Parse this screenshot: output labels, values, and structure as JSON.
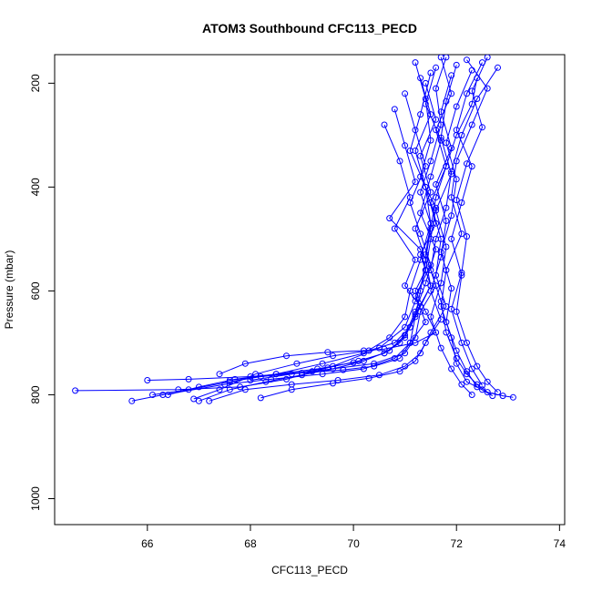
{
  "chart_data": {
    "type": "scatter",
    "title": "ATOM3 Southbound CFC113_PECD",
    "xlabel": "CFC113_PECD",
    "ylabel": "Pressure (mbar)",
    "xlim": [
      64.2,
      74.1
    ],
    "ylim": [
      1050,
      145
    ],
    "y_reversed": true,
    "x_ticks": [
      66,
      68,
      70,
      72,
      74
    ],
    "y_ticks": [
      200,
      400,
      600,
      800,
      1000
    ],
    "grid": false,
    "legend": "none",
    "marker": "open-circle",
    "connect_points": true,
    "series_color": "#0000ff",
    "series": [
      {
        "x": [
          72.4,
          72.3,
          72.0,
          71.8,
          71.6,
          71.5,
          71.4,
          71.3,
          71.2,
          71.1,
          70.8,
          70.2,
          69.4,
          68.4,
          67.5,
          66.3,
          65.7
        ],
        "y": [
          190,
          240,
          300,
          360,
          420,
          480,
          540,
          600,
          650,
          700,
          730,
          750,
          760,
          770,
          780,
          800,
          812
        ]
      },
      {
        "x": [
          71.2,
          71.4,
          71.5,
          71.3,
          71.6,
          71.5,
          71.4,
          71.2,
          71.0,
          70.5,
          69.6,
          68.7,
          67.8,
          66.6,
          64.6
        ],
        "y": [
          160,
          230,
          310,
          380,
          440,
          500,
          560,
          620,
          670,
          710,
          745,
          770,
          785,
          790,
          792
        ]
      },
      {
        "x": [
          71.8,
          71.6,
          71.7,
          71.5,
          71.3,
          71.5,
          71.4,
          71.6,
          71.3,
          71.2,
          71.0,
          70.4,
          69.2,
          68.0,
          66.8,
          66.0
        ],
        "y": [
          150,
          210,
          280,
          350,
          410,
          470,
          530,
          590,
          640,
          690,
          720,
          740,
          755,
          765,
          770,
          772
        ]
      },
      {
        "x": [
          72.8,
          72.4,
          72.1,
          71.9,
          71.8,
          71.6,
          71.5,
          71.7,
          71.8,
          72.0,
          72.2,
          72.4,
          72.6,
          72.9,
          73.1
        ],
        "y": [
          170,
          230,
          300,
          370,
          440,
          500,
          560,
          620,
          680,
          730,
          760,
          780,
          795,
          802,
          805
        ]
      },
      {
        "x": [
          70.8,
          71.0,
          71.2,
          70.7,
          71.3,
          71.4,
          71.2,
          71.4,
          71.6,
          71.2,
          70.6,
          70.2,
          69.5,
          68.7,
          67.9,
          67.4
        ],
        "y": [
          250,
          320,
          390,
          460,
          520,
          560,
          600,
          640,
          680,
          700,
          712,
          715,
          718,
          725,
          740,
          760
        ]
      },
      {
        "x": [
          72.2,
          72.6,
          72.3,
          72.0,
          71.9,
          72.1,
          71.8,
          71.7,
          71.9,
          72.0,
          72.2,
          72.5
        ],
        "y": [
          155,
          210,
          280,
          350,
          420,
          490,
          560,
          630,
          690,
          740,
          775,
          790
        ]
      },
      {
        "x": [
          71.5,
          71.3,
          71.1,
          71.4,
          71.5,
          71.3,
          71.1,
          71.0,
          70.7,
          70.2,
          69.4,
          68.5,
          67.6,
          66.8,
          66.1
        ],
        "y": [
          180,
          260,
          330,
          400,
          470,
          540,
          600,
          650,
          690,
          720,
          740,
          760,
          775,
          790,
          800
        ]
      },
      {
        "x": [
          72.0,
          71.8,
          71.7,
          71.9,
          71.6,
          71.8,
          71.7,
          71.5,
          71.7,
          71.9,
          72.1,
          72.3
        ],
        "y": [
          165,
          235,
          305,
          375,
          445,
          515,
          585,
          650,
          710,
          750,
          780,
          800
        ]
      },
      {
        "x": [
          71.4,
          71.6,
          71.3,
          71.5,
          71.2,
          71.4,
          71.5,
          71.3,
          71.1,
          70.8,
          70.3,
          69.6,
          68.9,
          68.1,
          67.4,
          66.9
        ],
        "y": [
          200,
          270,
          340,
          410,
          480,
          540,
          590,
          630,
          670,
          700,
          715,
          725,
          740,
          760,
          790,
          808
        ]
      },
      {
        "x": [
          72.3,
          72.0,
          71.8,
          72.0,
          71.9,
          71.7,
          71.9,
          71.8,
          72.0,
          72.2,
          72.4,
          72.7
        ],
        "y": [
          175,
          245,
          315,
          385,
          455,
          525,
          595,
          660,
          715,
          755,
          785,
          802
        ]
      },
      {
        "x": [
          71.0,
          71.2,
          71.4,
          71.1,
          71.3,
          71.5,
          71.2,
          71.4,
          71.1,
          70.9,
          70.4,
          69.8,
          69.0,
          68.2,
          67.6
        ],
        "y": [
          220,
          290,
          360,
          430,
          490,
          550,
          610,
          660,
          700,
          730,
          745,
          752,
          758,
          765,
          772
        ]
      },
      {
        "x": [
          71.7,
          71.9,
          71.6,
          71.8,
          71.5,
          71.7,
          71.6,
          71.8,
          71.5,
          71.3,
          71.0,
          70.5,
          69.7,
          68.8,
          67.9,
          67.2
        ],
        "y": [
          150,
          220,
          290,
          360,
          430,
          500,
          570,
          630,
          680,
          720,
          745,
          762,
          772,
          780,
          790,
          812
        ]
      },
      {
        "x": [
          72.5,
          72.2,
          72.0,
          72.3,
          72.1,
          71.9,
          72.1,
          72.0,
          72.2,
          72.4,
          72.6,
          72.8
        ],
        "y": [
          160,
          220,
          290,
          360,
          430,
          500,
          570,
          640,
          700,
          745,
          775,
          795
        ]
      },
      {
        "x": [
          71.3,
          71.5,
          71.2,
          71.4,
          71.6,
          71.3,
          71.5,
          71.2,
          71.0,
          70.6,
          70.0,
          69.3,
          68.5,
          67.7,
          67.0,
          66.4
        ],
        "y": [
          190,
          260,
          330,
          400,
          470,
          530,
          590,
          645,
          690,
          720,
          738,
          750,
          760,
          770,
          785,
          800
        ]
      },
      {
        "x": [
          71.9,
          71.7,
          71.9,
          71.6,
          71.8,
          71.7,
          71.5,
          71.7,
          71.4,
          71.2,
          70.9,
          70.3,
          69.6,
          68.8,
          68.2
        ],
        "y": [
          185,
          255,
          325,
          395,
          465,
          535,
          600,
          655,
          700,
          735,
          755,
          768,
          778,
          790,
          806
        ]
      },
      {
        "x": [
          72.6,
          72.3,
          72.5,
          72.2,
          72.0,
          72.2,
          72.1,
          71.9,
          72.1,
          72.3,
          72.5
        ],
        "y": [
          150,
          215,
          285,
          355,
          425,
          495,
          565,
          635,
          700,
          750,
          782
        ]
      },
      {
        "x": [
          70.6,
          70.9,
          71.1,
          70.8,
          71.2,
          71.0,
          71.3,
          71.1,
          70.9,
          70.6,
          70.1,
          69.5,
          68.8,
          68.0
        ],
        "y": [
          280,
          350,
          420,
          480,
          540,
          590,
          630,
          670,
          700,
          720,
          735,
          748,
          760,
          772
        ]
      },
      {
        "x": [
          71.6,
          71.4,
          71.7,
          71.5,
          71.3,
          71.6,
          71.4,
          71.2,
          71.0,
          70.7,
          70.2,
          69.6,
          69.0,
          68.3,
          67.6,
          67.0
        ],
        "y": [
          170,
          240,
          310,
          380,
          450,
          520,
          585,
          640,
          685,
          715,
          735,
          750,
          762,
          775,
          790,
          812
        ]
      }
    ]
  }
}
